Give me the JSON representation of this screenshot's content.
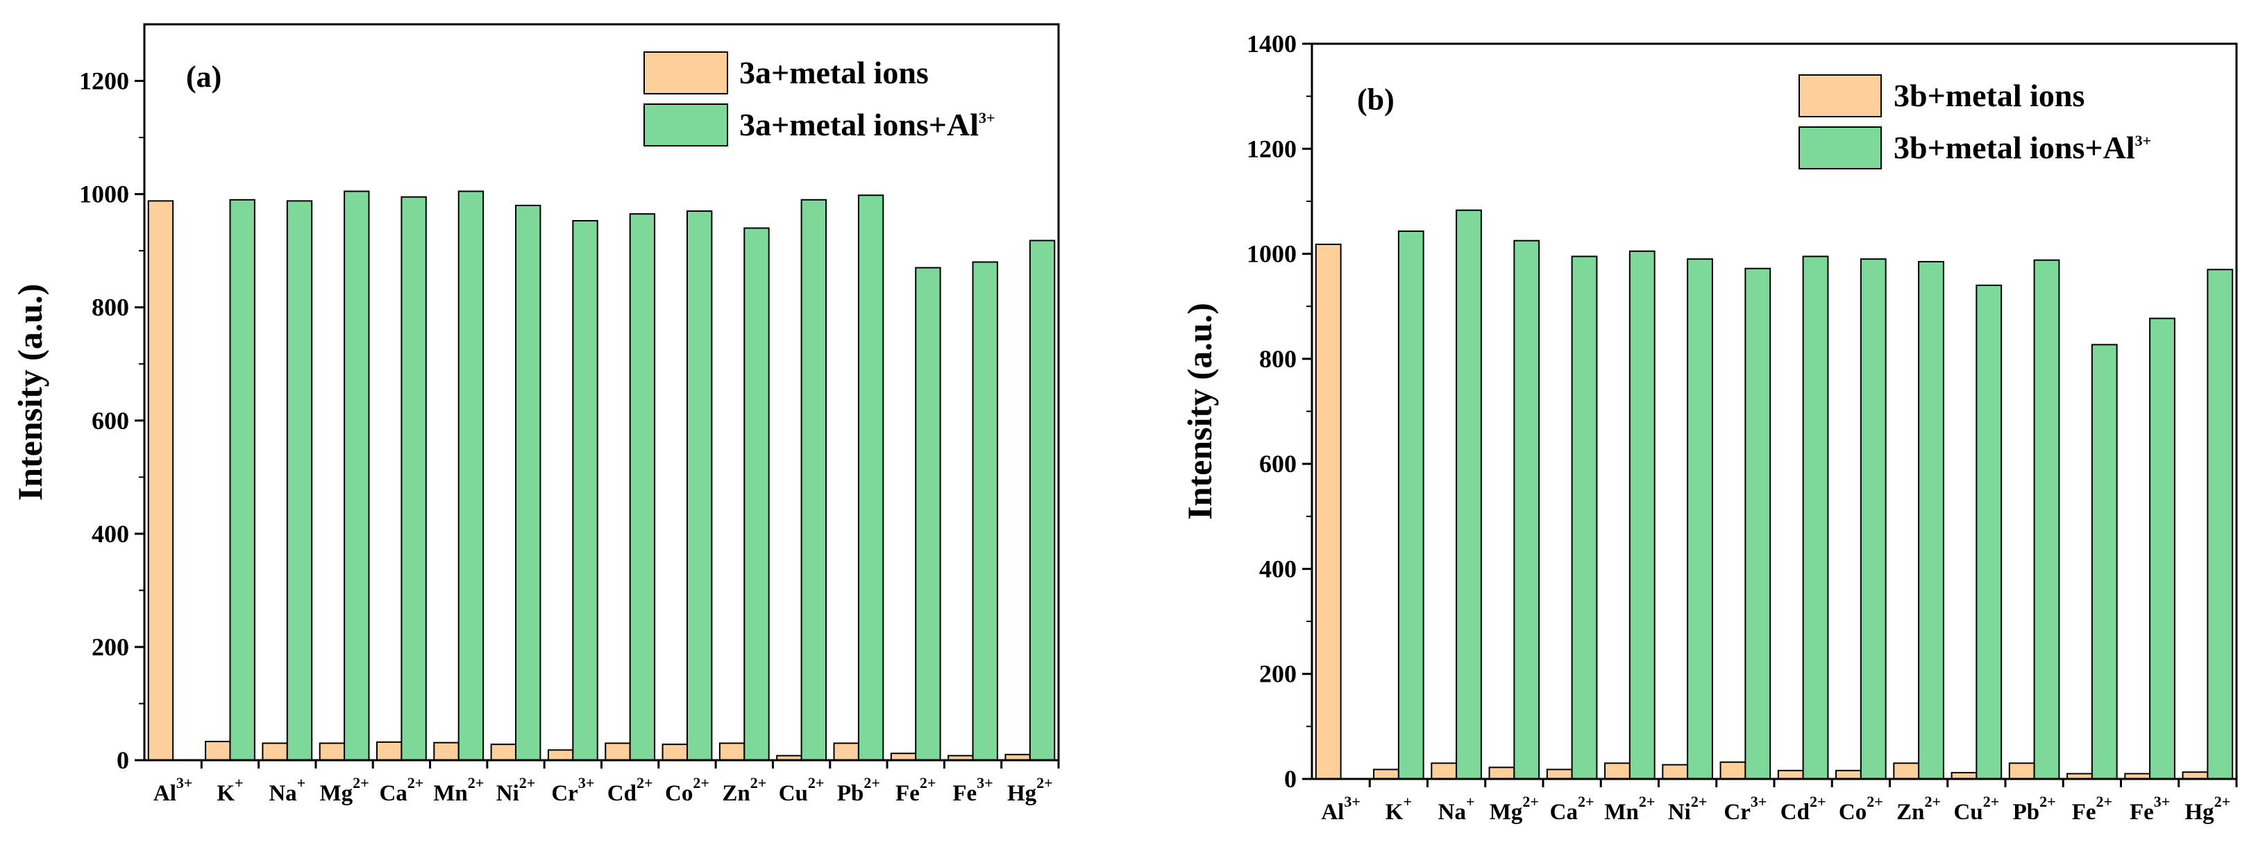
{
  "chart_data": [
    {
      "type": "bar",
      "panel_label": "(a)",
      "ylabel": "Intensity (a.u.)",
      "xlabel": "",
      "ylim": [
        0,
        1300
      ],
      "yticks": [
        0,
        200,
        400,
        600,
        800,
        1000,
        1200
      ],
      "categories": [
        {
          "base": "Al",
          "sup": "3+"
        },
        {
          "base": "K",
          "sup": "+"
        },
        {
          "base": "Na",
          "sup": "+"
        },
        {
          "base": "Mg",
          "sup": "2+"
        },
        {
          "base": "Ca",
          "sup": "2+"
        },
        {
          "base": "Mn",
          "sup": "2+"
        },
        {
          "base": "Ni",
          "sup": "2+"
        },
        {
          "base": "Cr",
          "sup": "3+"
        },
        {
          "base": "Cd",
          "sup": "2+"
        },
        {
          "base": "Co",
          "sup": "2+"
        },
        {
          "base": "Zn",
          "sup": "2+"
        },
        {
          "base": "Cu",
          "sup": "2+"
        },
        {
          "base": "Pb",
          "sup": "2+"
        },
        {
          "base": "Fe",
          "sup": "2+"
        },
        {
          "base": "Fe",
          "sup": "3+"
        },
        {
          "base": "Hg",
          "sup": "2+"
        }
      ],
      "series": [
        {
          "name": "3a+metal ions",
          "name_base": "3a+metal ions",
          "name_sup": "",
          "color": "#fdd09b",
          "values": [
            988,
            33,
            30,
            30,
            32,
            31,
            28,
            18,
            30,
            28,
            30,
            8,
            30,
            12,
            8,
            10
          ]
        },
        {
          "name": "3a+metal ions+Al3+",
          "name_base": "3a+metal ions+Al",
          "name_sup": "3+",
          "color": "#7dd89a",
          "values": [
            null,
            990,
            988,
            1005,
            995,
            1005,
            980,
            953,
            965,
            970,
            940,
            990,
            998,
            870,
            880,
            918
          ]
        }
      ]
    },
    {
      "type": "bar",
      "panel_label": "(b)",
      "ylabel": "Intensity (a.u.)",
      "xlabel": "",
      "ylim": [
        0,
        1400
      ],
      "yticks": [
        0,
        200,
        400,
        600,
        800,
        1000,
        1200,
        1400
      ],
      "categories": [
        {
          "base": "Al",
          "sup": "3+"
        },
        {
          "base": "K",
          "sup": "+"
        },
        {
          "base": "Na",
          "sup": "+"
        },
        {
          "base": "Mg",
          "sup": "2+"
        },
        {
          "base": "Ca",
          "sup": "2+"
        },
        {
          "base": "Mn",
          "sup": "2+"
        },
        {
          "base": "Ni",
          "sup": "2+"
        },
        {
          "base": "Cr",
          "sup": "3+"
        },
        {
          "base": "Cd",
          "sup": "2+"
        },
        {
          "base": "Co",
          "sup": "2+"
        },
        {
          "base": "Zn",
          "sup": "2+"
        },
        {
          "base": "Cu",
          "sup": "2+"
        },
        {
          "base": "Pb",
          "sup": "2+"
        },
        {
          "base": "Fe",
          "sup": "2+"
        },
        {
          "base": "Fe",
          "sup": "3+"
        },
        {
          "base": "Hg",
          "sup": "2+"
        }
      ],
      "series": [
        {
          "name": "3b+metal ions",
          "name_base": "3b+metal ions",
          "name_sup": "",
          "color": "#fdd09b",
          "values": [
            1018,
            18,
            30,
            22,
            18,
            30,
            27,
            32,
            16,
            16,
            30,
            12,
            30,
            10,
            10,
            13
          ]
        },
        {
          "name": "3b+metal ions+Al3+",
          "name_base": "3b+metal ions+Al",
          "name_sup": "3+",
          "color": "#7dd89a",
          "values": [
            null,
            1043,
            1083,
            1025,
            995,
            1005,
            990,
            972,
            995,
            990,
            985,
            940,
            988,
            827,
            877,
            970
          ]
        }
      ]
    }
  ]
}
